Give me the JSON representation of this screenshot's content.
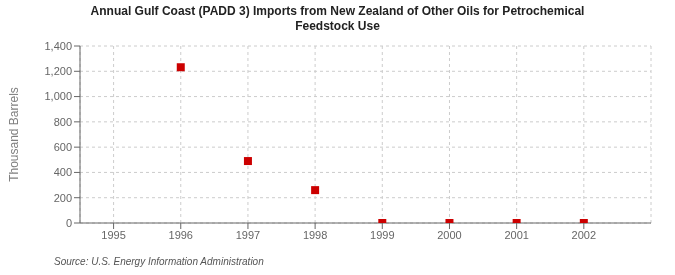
{
  "chart_data": {
    "type": "scatter",
    "title": "Annual Gulf Coast (PADD 3) Imports from New Zealand of Other Oils for Petrochemical\nFeedstock Use",
    "ylabel": "Thousand Barrels",
    "annotations": [
      "Source: U.S. Energy Information Administration"
    ],
    "x": [
      1996,
      1997,
      1998,
      1999,
      2000,
      2001,
      2002
    ],
    "values": [
      1232,
      490,
      260,
      0,
      0,
      0,
      0
    ],
    "color": "#cc0000",
    "marker": "square",
    "xlim": [
      1994.5,
      2003.0
    ],
    "ylim": [
      0,
      1400
    ],
    "xticks": [
      1995,
      1996,
      1997,
      1998,
      1999,
      2000,
      2001,
      2002
    ],
    "yticks": [
      0,
      200,
      400,
      600,
      800,
      {
        "value": 1000,
        "label": "1,000"
      },
      {
        "value": 1200,
        "label": "1,200"
      },
      {
        "value": 1400,
        "label": "1,400"
      }
    ],
    "grid": true
  }
}
